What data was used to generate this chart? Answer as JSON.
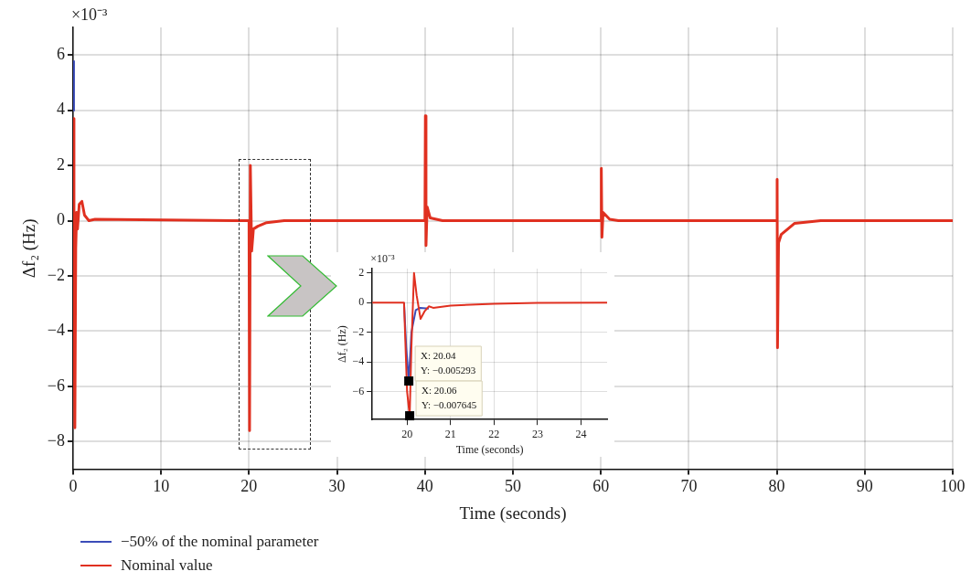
{
  "chart_data": [
    {
      "type": "line",
      "xlabel": "Time (seconds)",
      "ylabel": "Δf₂ (Hz)",
      "xlim": [
        0,
        100
      ],
      "ylim": [
        -9,
        7
      ],
      "xticks": [
        0,
        10,
        20,
        30,
        40,
        50,
        60,
        70,
        80,
        90,
        100
      ],
      "yticks": [
        -8,
        -6,
        -4,
        -2,
        0,
        2,
        4,
        6
      ],
      "grid": true,
      "legend": "bottom left",
      "annotations": [
        "×10⁻³"
      ],
      "series": [
        {
          "name": "−50% of the nominal parameter",
          "color": "#3b4cb8",
          "x": [
            0.04,
            0.05
          ],
          "values": [
            4.0,
            5.8
          ]
        },
        {
          "name": "Nominal value",
          "color": "#e03020",
          "x": [
            0,
            0.05,
            0.1,
            0.2,
            0.3,
            0.4,
            0.5,
            0.7,
            1.0,
            1.3,
            1.8,
            2.5,
            20,
            20.06,
            20.15,
            20.3,
            20.5,
            21,
            22,
            24,
            40,
            40.05,
            40.12,
            40.25,
            40.6,
            42,
            60,
            60.05,
            60.12,
            60.25,
            61,
            62,
            80,
            80.04,
            80.08,
            80.2,
            80.5,
            82,
            85,
            100
          ],
          "values": [
            0,
            3.7,
            -2,
            -7.5,
            -1,
            0.3,
            -0.3,
            0.6,
            0.7,
            0.2,
            0,
            0.05,
            0,
            -7.6,
            2.0,
            -1.1,
            -0.3,
            -0.2,
            -0.07,
            0,
            0,
            3.8,
            -0.9,
            0.5,
            0.1,
            0,
            0,
            1.9,
            -0.6,
            0.3,
            0.05,
            0,
            0,
            1.5,
            -4.6,
            -0.8,
            -0.5,
            -0.1,
            0,
            0
          ]
        }
      ]
    },
    {
      "type": "line",
      "xlabel": "Time (seconds)",
      "ylabel": "Δf₂ (Hz)",
      "xlim": [
        19.2,
        24.6
      ],
      "ylim": [
        -7.9,
        2.3
      ],
      "xticks": [
        20,
        21,
        22,
        23,
        24
      ],
      "yticks": [
        -6,
        -4,
        -2,
        0,
        2
      ],
      "grid": true,
      "annotations": [
        "×10⁻³",
        {
          "text": "X: 20.04\nY: −0.005293",
          "x": 20.04,
          "y": -5.293
        },
        {
          "text": "X: 20.06\nY: −0.007645",
          "x": 20.06,
          "y": -7.645
        }
      ],
      "series": [
        {
          "color": "#3b4cb8",
          "x": [
            19.93,
            19.98,
            20.04,
            20.1,
            20.2,
            20.3,
            20.5
          ],
          "values": [
            0,
            -3,
            -5.293,
            -2,
            -0.5,
            -0.35,
            -0.4
          ]
        },
        {
          "color": "#e03020",
          "x": [
            19.2,
            19.93,
            20.0,
            20.06,
            20.1,
            20.16,
            20.22,
            20.31,
            20.4,
            20.5,
            20.6,
            21,
            22,
            23,
            24.6
          ],
          "values": [
            0,
            0,
            -6,
            -7.645,
            -3,
            2.0,
            0.5,
            -1.1,
            -0.6,
            -0.25,
            -0.35,
            -0.2,
            -0.07,
            -0.02,
            0
          ]
        }
      ]
    }
  ]
}
